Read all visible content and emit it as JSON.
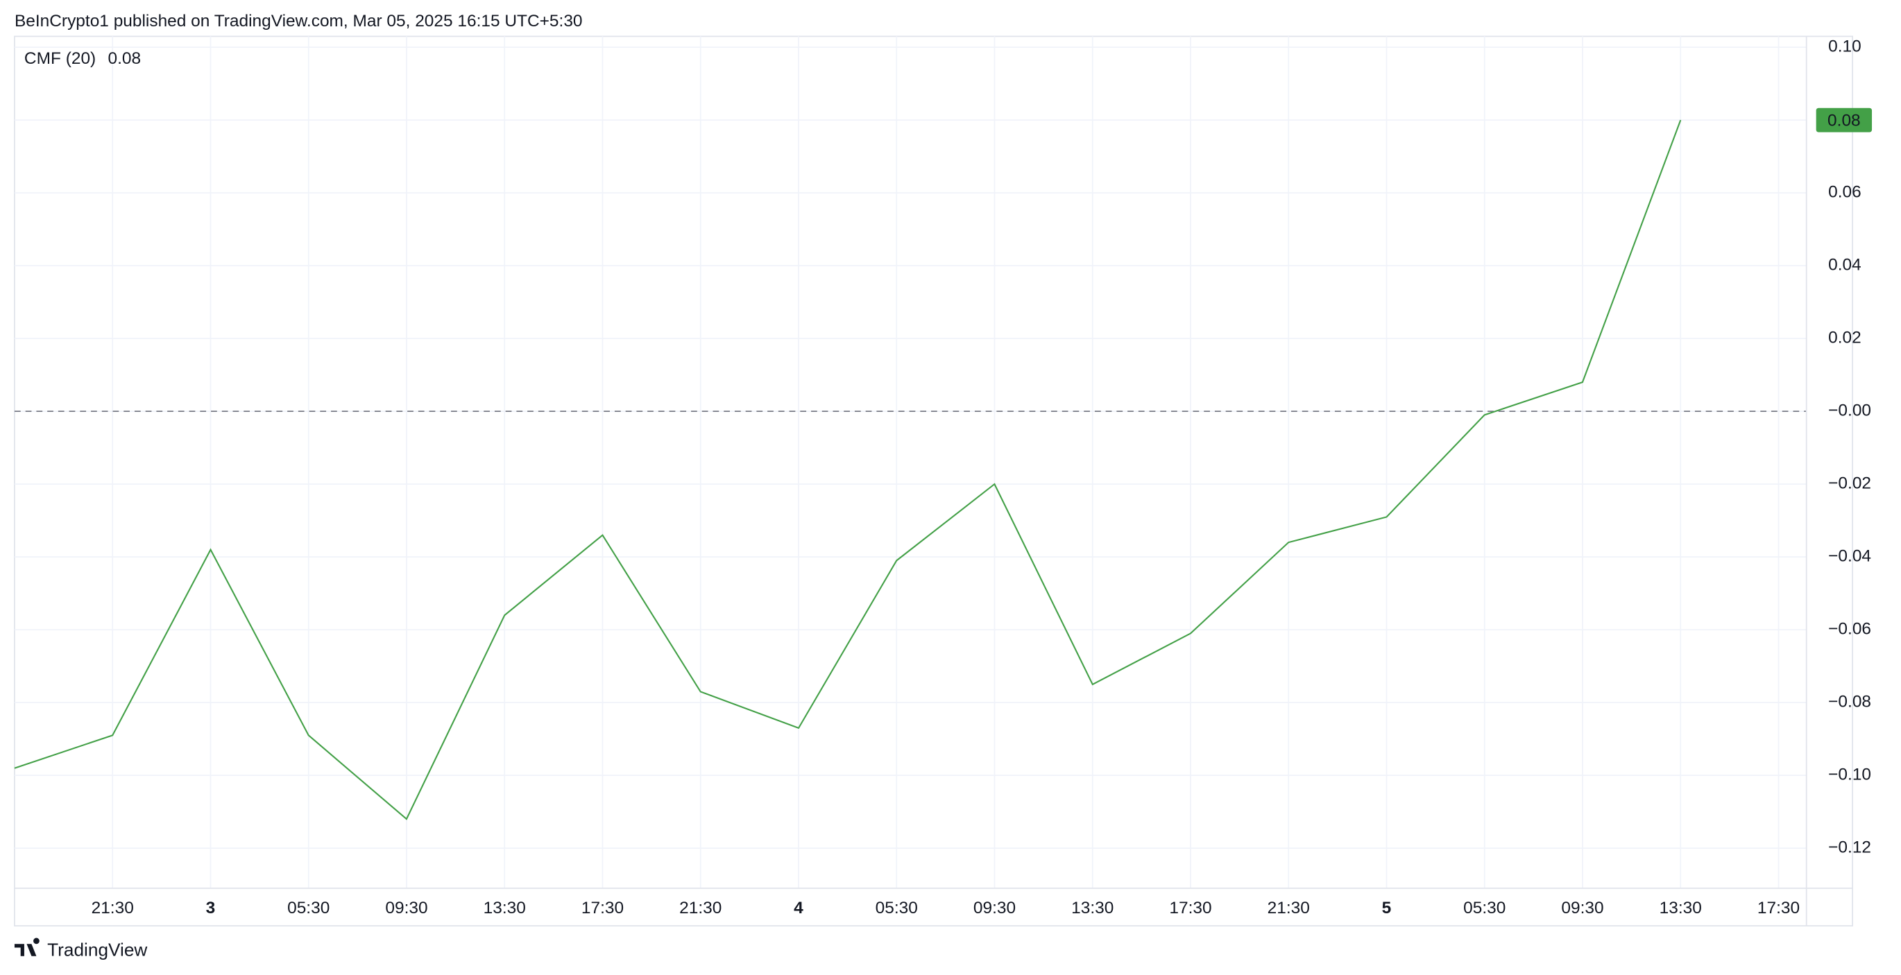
{
  "header": "BeInCrypto1 published on TradingView.com, Mar 05, 2025 16:15 UTC+5:30",
  "footer": "TradingView",
  "chart_data": {
    "type": "line",
    "indicator": {
      "name": "CMF (20)",
      "value": "0.08"
    },
    "categories": [
      null,
      "21:30",
      "3",
      "05:30",
      "09:30",
      "13:30",
      "17:30",
      "21:30",
      "4",
      "05:30",
      "09:30",
      "13:30",
      "17:30",
      "21:30",
      "5",
      "05:30",
      "09:30",
      "13:30",
      "17:30"
    ],
    "series": [
      {
        "name": "CMF (20)",
        "color": "#43a047",
        "values": [
          -0.098,
          -0.089,
          -0.038,
          -0.089,
          -0.112,
          -0.056,
          -0.034,
          -0.077,
          -0.087,
          -0.041,
          -0.02,
          -0.075,
          -0.061,
          -0.036,
          -0.029,
          -0.001,
          0.008,
          0.08,
          null
        ]
      }
    ],
    "ylim": [
      -0.131,
      0.103
    ],
    "yticks": [
      {
        "value": 0.1,
        "label": "0.10"
      },
      {
        "value": 0.08,
        "label": "0.08"
      },
      {
        "value": 0.06,
        "label": "0.06"
      },
      {
        "value": 0.04,
        "label": "0.04"
      },
      {
        "value": 0.02,
        "label": "0.02"
      },
      {
        "value": 0,
        "label": "−0.00"
      },
      {
        "value": -0.02,
        "label": "−0.02"
      },
      {
        "value": -0.04,
        "label": "−0.04"
      },
      {
        "value": -0.06,
        "label": "−0.06"
      },
      {
        "value": -0.08,
        "label": "−0.08"
      },
      {
        "value": -0.1,
        "label": "−0.10"
      },
      {
        "value": -0.12,
        "label": "−0.12"
      }
    ],
    "zero_line": true,
    "grid": true
  }
}
